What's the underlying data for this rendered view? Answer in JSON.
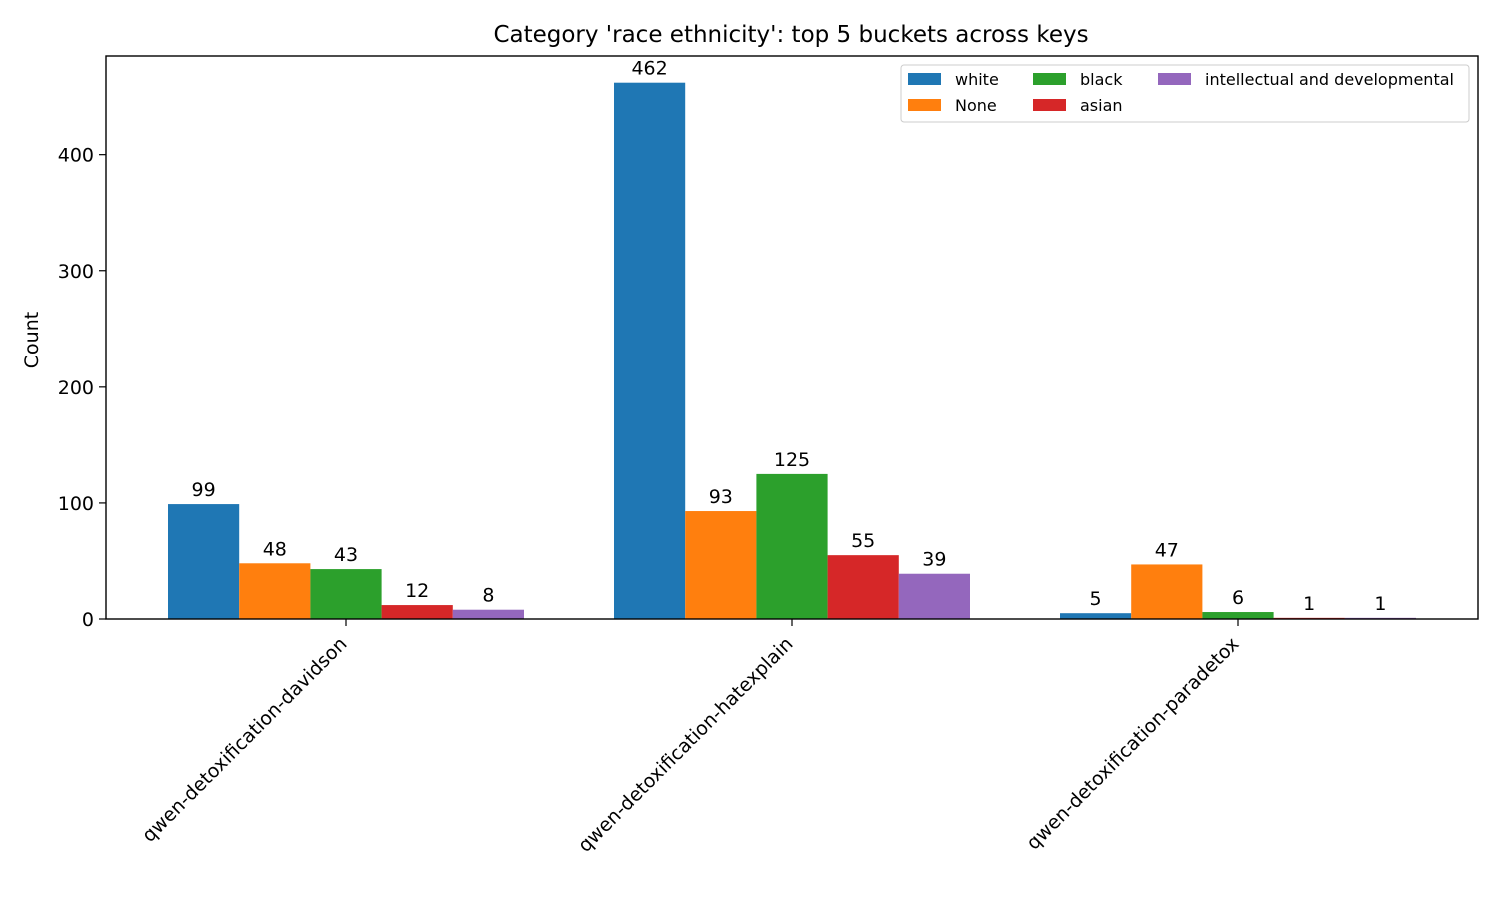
{
  "chart_data": {
    "type": "bar",
    "title": "Category 'race ethnicity': top 5 buckets across keys",
    "xlabel": "",
    "ylabel": "Count",
    "ylim": [
      0,
      485
    ],
    "yticks": [
      0,
      100,
      200,
      300,
      400
    ],
    "categories": [
      "qwen-detoxification-davidson",
      "qwen-detoxification-hatexplain",
      "qwen-detoxification-paradetox"
    ],
    "series": [
      {
        "name": "white",
        "color": "#1f77b4",
        "values": [
          99,
          462,
          5
        ]
      },
      {
        "name": "None",
        "color": "#ff7f0e",
        "values": [
          48,
          93,
          47
        ]
      },
      {
        "name": "black",
        "color": "#2ca02c",
        "values": [
          43,
          125,
          6
        ]
      },
      {
        "name": "asian",
        "color": "#d62728",
        "values": [
          12,
          55,
          1
        ]
      },
      {
        "name": "intellectual and developmental",
        "color": "#9467bd",
        "values": [
          8,
          39,
          1
        ]
      }
    ],
    "grid": false,
    "legend": {
      "position": "top-right",
      "columns": 3
    }
  }
}
